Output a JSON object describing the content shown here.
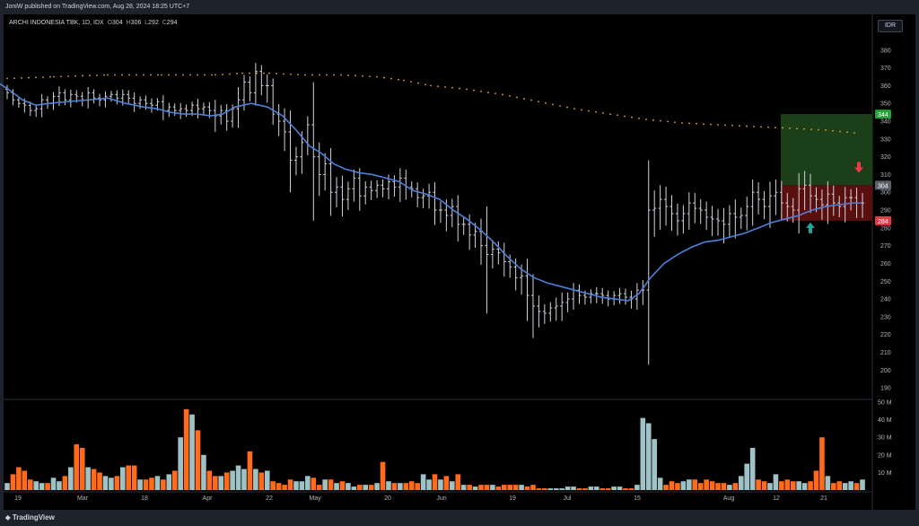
{
  "header": {
    "publisher_text": "JoniW published on TradingView.com, Aug 28, 2024 18:25 UTC+7"
  },
  "legend": {
    "symbol": "ARCHI INDONESIA TBK, 1D, IDX",
    "open_label": "O",
    "open": "304",
    "high_label": "H",
    "high": "306",
    "low_label": "L",
    "low": "292",
    "close_label": "C",
    "close": "294"
  },
  "currency_button": "IDR",
  "footer": {
    "brand": "TradingView"
  },
  "colors": {
    "background": "#000000",
    "bar": "#d1d4dc",
    "ma_blue": "#4f7fd6",
    "ma_orange_dots": "#f0a030",
    "volume_up": "#9fc2c6",
    "volume_down": "#ff6b1a",
    "profit_zone": "#1b3f18",
    "loss_zone": "#5a0f0f",
    "target_label": "#26a33a",
    "stop_label": "#f23645",
    "price_label": "#5d606b",
    "arrow_up": "#26a69a",
    "arrow_down": "#f23645"
  },
  "chart_data": {
    "type": "ohlc",
    "ylim": [
      185,
      390
    ],
    "y_ticks": [
      380,
      370,
      360,
      350,
      340,
      330,
      320,
      310,
      300,
      290,
      280,
      270,
      260,
      250,
      240,
      230,
      220,
      210,
      200,
      190
    ],
    "x_ticks": [
      "19",
      "Mar",
      "18",
      "Apr",
      "22",
      "May",
      "20",
      "Jun",
      "19",
      "Jul",
      "15",
      "Aug",
      "12",
      "21"
    ],
    "volume_ticks": [
      "50 M",
      "40 M",
      "30 M",
      "20 M",
      "10 M"
    ],
    "volume_max": 50,
    "price_labels": {
      "target": "344",
      "current": "304",
      "stop": "284"
    },
    "position": {
      "entry": 304,
      "target": 344,
      "stop": 284
    },
    "closes": [
      356,
      352,
      350,
      349,
      346,
      347,
      352,
      350,
      354,
      356,
      352,
      355,
      354,
      352,
      356,
      353,
      352,
      354,
      355,
      353,
      355,
      353,
      350,
      352,
      350,
      349,
      351,
      346,
      348,
      346,
      347,
      346,
      349,
      347,
      348,
      346,
      343,
      346,
      340,
      347,
      352,
      362,
      356,
      368,
      360,
      360,
      344,
      340,
      334,
      318,
      320,
      328,
      338,
      320,
      310,
      316,
      300,
      303,
      296,
      302,
      308,
      298,
      303,
      301,
      304,
      302,
      306,
      303,
      308,
      303,
      302,
      297,
      298,
      300,
      290,
      290,
      287,
      292,
      282,
      282,
      276,
      278,
      270,
      265,
      268,
      266,
      261,
      258,
      252,
      253,
      242,
      236,
      233,
      232,
      235,
      236,
      238,
      240,
      245,
      242,
      241,
      243,
      243,
      242,
      240,
      242,
      243,
      241,
      240,
      245,
      245,
      290,
      291,
      296,
      292,
      288,
      284,
      288,
      294,
      291,
      290,
      286,
      285,
      284,
      282,
      288,
      286,
      287,
      292,
      300,
      296,
      292,
      298,
      300,
      294,
      292,
      290,
      302,
      304,
      298,
      296,
      293,
      299,
      294,
      292,
      297,
      297,
      294,
      294
    ],
    "volume_m": [
      4,
      9,
      13,
      11,
      6,
      5,
      4,
      4,
      7,
      5,
      8,
      13,
      26,
      24,
      13,
      12,
      10,
      8,
      7,
      8,
      13,
      14,
      14,
      6,
      6,
      7,
      8,
      6,
      9,
      11,
      30,
      46,
      43,
      34,
      20,
      11,
      8,
      8,
      10,
      11,
      14,
      12,
      22,
      12,
      10,
      11,
      5,
      4,
      3,
      6,
      5,
      5,
      8,
      7,
      3,
      6,
      6,
      4,
      5,
      4,
      2,
      3,
      3,
      3,
      4,
      16,
      5,
      4,
      4,
      4,
      5,
      4,
      9,
      6,
      9,
      6,
      8,
      5,
      9,
      3,
      3,
      2,
      3,
      3,
      3,
      2,
      3,
      3,
      3,
      3,
      2,
      3,
      1,
      1,
      1,
      1,
      1,
      2,
      2,
      1,
      1,
      2,
      2,
      1,
      1,
      2,
      2,
      1,
      1,
      3,
      41,
      38,
      29,
      7,
      3,
      5,
      4,
      5,
      6,
      6,
      4,
      6,
      5,
      4,
      4,
      3,
      4,
      8,
      15,
      24,
      6,
      5,
      4,
      9,
      5,
      6,
      5,
      5,
      4,
      5,
      11,
      30,
      8,
      4,
      5,
      4,
      5,
      4,
      6
    ],
    "blue_ma": [
      [
        0,
        361
      ],
      [
        12,
        357
      ],
      [
        25,
        352
      ],
      [
        40,
        349
      ],
      [
        55,
        350
      ],
      [
        75,
        351
      ],
      [
        100,
        352
      ],
      [
        120,
        353
      ],
      [
        140,
        350
      ],
      [
        160,
        348
      ],
      [
        175,
        347
      ],
      [
        190,
        345
      ],
      [
        205,
        344
      ],
      [
        220,
        344
      ],
      [
        235,
        343
      ],
      [
        248,
        344
      ],
      [
        262,
        348
      ],
      [
        280,
        350
      ],
      [
        298,
        348
      ],
      [
        315,
        343
      ],
      [
        330,
        335
      ],
      [
        345,
        326
      ],
      [
        358,
        322
      ],
      [
        372,
        316
      ],
      [
        385,
        313
      ],
      [
        400,
        311
      ],
      [
        415,
        310
      ],
      [
        430,
        308
      ],
      [
        445,
        306
      ],
      [
        460,
        301
      ],
      [
        475,
        299
      ],
      [
        490,
        296
      ],
      [
        505,
        290
      ],
      [
        520,
        285
      ],
      [
        535,
        279
      ],
      [
        550,
        272
      ],
      [
        565,
        264
      ],
      [
        580,
        257
      ],
      [
        595,
        252
      ],
      [
        610,
        249
      ],
      [
        625,
        247
      ],
      [
        640,
        245
      ],
      [
        655,
        243
      ],
      [
        670,
        241
      ],
      [
        685,
        240
      ],
      [
        700,
        239
      ],
      [
        712,
        243
      ],
      [
        725,
        252
      ],
      [
        740,
        260
      ],
      [
        755,
        265
      ],
      [
        770,
        269
      ],
      [
        785,
        272
      ],
      [
        800,
        273
      ],
      [
        815,
        275
      ],
      [
        830,
        277
      ],
      [
        845,
        280
      ],
      [
        860,
        283
      ],
      [
        875,
        285
      ],
      [
        890,
        287
      ],
      [
        905,
        290
      ],
      [
        920,
        292
      ],
      [
        935,
        293
      ],
      [
        950,
        294
      ],
      [
        960,
        294
      ]
    ],
    "orange_ma": [
      [
        8,
        364
      ],
      [
        60,
        365
      ],
      [
        120,
        366
      ],
      [
        180,
        366
      ],
      [
        240,
        366
      ],
      [
        270,
        367
      ],
      [
        300,
        367
      ],
      [
        340,
        366
      ],
      [
        380,
        366
      ],
      [
        420,
        365
      ],
      [
        450,
        363
      ],
      [
        480,
        360
      ],
      [
        520,
        358
      ],
      [
        560,
        355
      ],
      [
        600,
        351
      ],
      [
        640,
        347
      ],
      [
        680,
        344
      ],
      [
        720,
        341
      ],
      [
        760,
        339
      ],
      [
        800,
        338
      ],
      [
        840,
        337
      ],
      [
        880,
        336
      ],
      [
        920,
        335
      ],
      [
        960,
        333
      ]
    ]
  }
}
